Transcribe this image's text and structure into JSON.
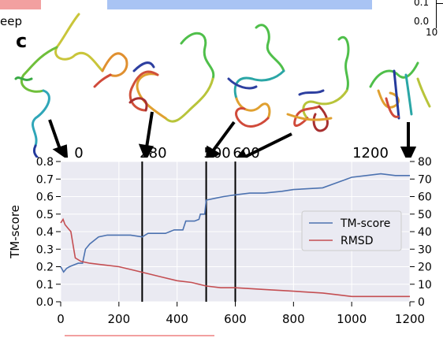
{
  "top_fragments": {
    "fragment_left": "eep",
    "fragment_right_ticks": [
      "0.1",
      "0.0",
      "10"
    ],
    "colors": {
      "pink": "#f2a0a0",
      "blue": "#a9c4f4"
    }
  },
  "panel_label": "c",
  "structure_images": [
    {
      "name": "structure-0",
      "note": "protein ribbon render"
    },
    {
      "name": "structure-280",
      "note": "protein ribbon render"
    },
    {
      "name": "structure-500",
      "note": "protein ribbon render"
    },
    {
      "name": "structure-600",
      "note": "protein ribbon render"
    },
    {
      "name": "structure-1200",
      "note": "protein ribbon render"
    }
  ],
  "chart_data": {
    "type": "line",
    "xlabel": "",
    "ylabel_left": "TM-score",
    "ylabel_right": "",
    "xlim": [
      0,
      1200
    ],
    "ylim_left": [
      0.0,
      0.8
    ],
    "ylim_right": [
      0,
      80
    ],
    "xticks": [
      "0",
      "200",
      "400",
      "600",
      "800",
      "1000",
      "1200"
    ],
    "yticks_left": [
      "0.0",
      "0.1",
      "0.2",
      "0.3",
      "0.4",
      "0.5",
      "0.6",
      "0.7",
      "0.8"
    ],
    "yticks_right": [
      "0",
      "10",
      "20",
      "30",
      "40",
      "50",
      "60",
      "70",
      "80"
    ],
    "grid": true,
    "legend_position": "center-right",
    "markers": [
      {
        "x": 0,
        "label": "0"
      },
      {
        "x": 280,
        "label": "280"
      },
      {
        "x": 500,
        "label": "500"
      },
      {
        "x": 600,
        "label": "600"
      },
      {
        "x": 1200,
        "label": "1200"
      }
    ],
    "series": [
      {
        "name": "TM-score",
        "axis": "left",
        "color": "#4c72b0",
        "x": [
          0,
          10,
          20,
          30,
          45,
          60,
          75,
          85,
          100,
          130,
          160,
          200,
          240,
          280,
          300,
          330,
          360,
          390,
          420,
          430,
          460,
          475,
          480,
          495,
          500,
          530,
          560,
          600,
          650,
          700,
          760,
          800,
          900,
          950,
          1000,
          1050,
          1100,
          1150,
          1200
        ],
        "y": [
          0.2,
          0.17,
          0.19,
          0.2,
          0.21,
          0.22,
          0.22,
          0.3,
          0.33,
          0.37,
          0.38,
          0.38,
          0.38,
          0.37,
          0.39,
          0.39,
          0.39,
          0.41,
          0.41,
          0.46,
          0.46,
          0.47,
          0.5,
          0.5,
          0.58,
          0.59,
          0.6,
          0.61,
          0.62,
          0.62,
          0.63,
          0.64,
          0.65,
          0.68,
          0.71,
          0.72,
          0.73,
          0.72,
          0.72
        ]
      },
      {
        "name": "RMSD",
        "axis": "right",
        "color": "#c44e52",
        "x": [
          0,
          8,
          15,
          25,
          35,
          45,
          50,
          70,
          100,
          150,
          200,
          250,
          300,
          350,
          400,
          450,
          500,
          550,
          600,
          700,
          800,
          900,
          950,
          1000,
          1100,
          1200
        ],
        "y": [
          45,
          47,
          44,
          42,
          40,
          30,
          25,
          23,
          22,
          21,
          20,
          18,
          16,
          14,
          12,
          11,
          9,
          8,
          8,
          7,
          6,
          5,
          4,
          3,
          3,
          3
        ]
      }
    ]
  }
}
